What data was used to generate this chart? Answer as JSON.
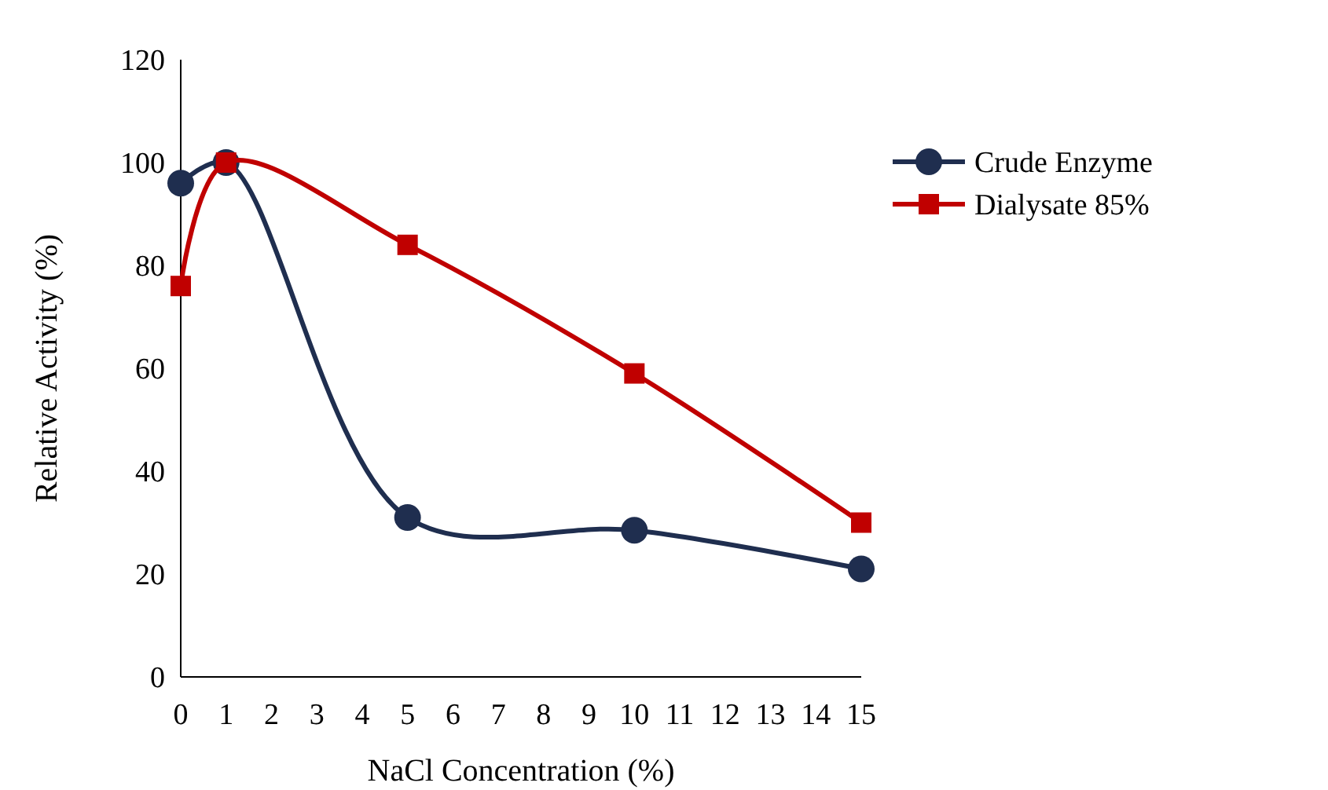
{
  "chart_data": {
    "type": "line",
    "xlabel": "NaCl Concentration (%)",
    "ylabel": "Relative Activity (%)",
    "x": [
      0,
      1,
      5,
      10,
      15
    ],
    "series": [
      {
        "name": "Crude Enzyme",
        "color": "#1f2e4f",
        "values": [
          96,
          100,
          31,
          28.5,
          21
        ],
        "marker": "circle"
      },
      {
        "name": "Dialysate 85%",
        "color": "#c00000",
        "values": [
          76,
          100,
          84,
          59,
          30
        ],
        "marker": "square"
      }
    ],
    "xlim": [
      0,
      15
    ],
    "xticks": [
      0,
      1,
      2,
      3,
      4,
      5,
      6,
      7,
      8,
      9,
      10,
      11,
      12,
      13,
      14,
      15
    ],
    "ylim": [
      0,
      120
    ],
    "yticks": [
      0,
      20,
      40,
      60,
      80,
      100,
      120
    ],
    "grid": false,
    "legend": "right",
    "line_style": "solid"
  }
}
